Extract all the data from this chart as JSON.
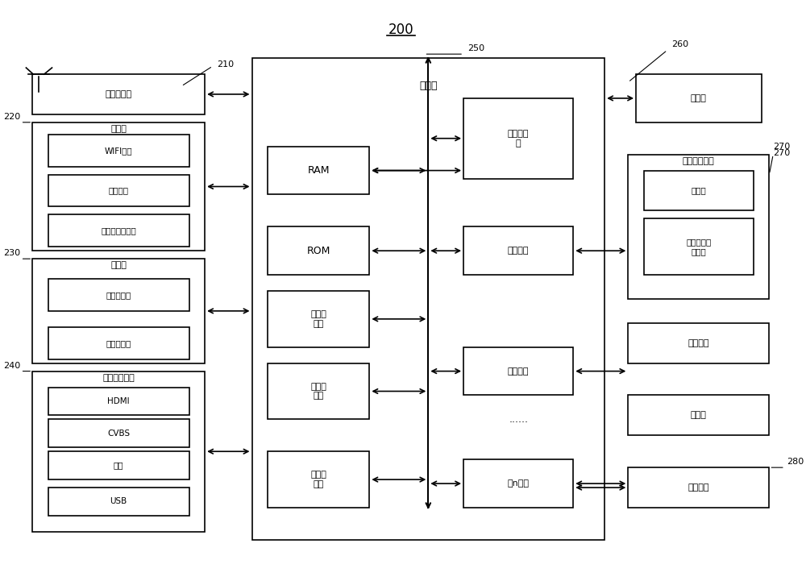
{
  "title": "200",
  "bg_color": "#ffffff",
  "box_color": "#ffffff",
  "box_edge": "#000000",
  "font_color": "#000000",
  "figsize": [
    10.0,
    7.21
  ],
  "dpi": 100,
  "labels": {
    "tuner": "调谐解调器",
    "comm": "通信器",
    "wifi": "WIFI模块",
    "bt": "蓝牙模块",
    "eth": "有线以太网模块",
    "detector": "检测器",
    "audio_cap": "声音采集器",
    "img_cap": "图像采集器",
    "ext_if": "外部装置接口",
    "hdmi": "HDMI",
    "cvbs": "CVBS",
    "res": "分量",
    "usb": "USB",
    "controller": "控制器",
    "ram": "RAM",
    "rom": "ROM",
    "cpu": "中央处理\n器",
    "first_if": "第一接口",
    "second_if": "第二接口",
    "nth_if": "第n接口",
    "video_proc": "视频处\n理器",
    "graphic_proc": "图形处\n理器",
    "audio_proc": "音频处\n理器",
    "display": "显示器",
    "audio_out_if": "音频输出接口",
    "speaker": "扬声器",
    "ext_speaker": "外接音响输\n出端子",
    "power": "供电电源",
    "storage": "存储器",
    "user_if": "用户接口",
    "dots": "......",
    "ref_210": "210",
    "ref_220": "220",
    "ref_230": "230",
    "ref_240": "240",
    "ref_250": "250",
    "ref_260": "260",
    "ref_270": "270",
    "ref_280": "280"
  }
}
